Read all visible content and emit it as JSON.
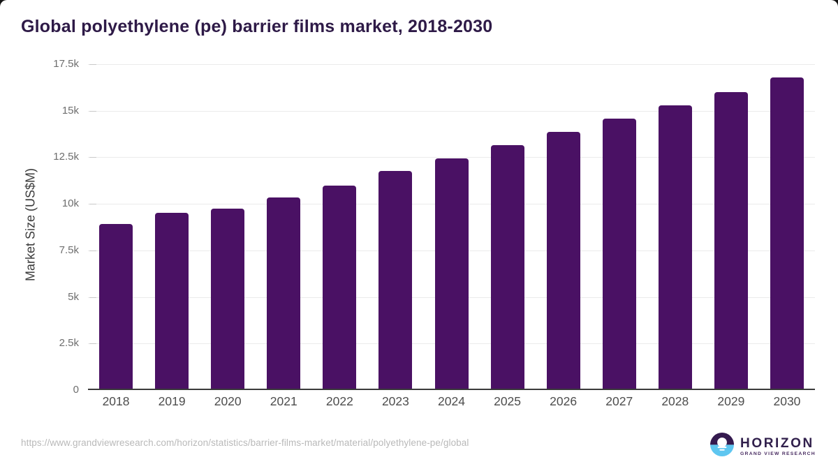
{
  "page": {
    "title": "Global polyethylene (pe) barrier films market, 2018-2030",
    "footer": {
      "source_url": "https://www.grandviewresearch.com/horizon/statistics/barrier-films-market/material/polyethylene-pe/global"
    },
    "logo": {
      "name": "HORIZON",
      "tagline": "GRAND VIEW RESEARCH",
      "icon": "sun-horizon-icon",
      "icon_colors": {
        "top": "#341a4f",
        "bottom": "#5ec6f0",
        "sun": "#ffffff"
      }
    }
  },
  "chart_data": {
    "type": "bar",
    "title": "Global polyethylene (pe) barrier films market, 2018-2030",
    "xlabel": "",
    "ylabel": "Market Size (US$M)",
    "categories": [
      "2018",
      "2019",
      "2020",
      "2021",
      "2022",
      "2023",
      "2024",
      "2025",
      "2026",
      "2027",
      "2028",
      "2029",
      "2030"
    ],
    "values": [
      8930,
      9520,
      9740,
      10330,
      10970,
      11760,
      12460,
      13160,
      13870,
      14580,
      15300,
      16020,
      16780
    ],
    "ylim": [
      0,
      17500
    ],
    "yticks": [
      0,
      2500,
      5000,
      7500,
      10000,
      12500,
      15000,
      17500
    ],
    "ytick_labels": [
      "0",
      "2.5k",
      "5k",
      "7.5k",
      "10k",
      "12.5k",
      "15k",
      "17.5k"
    ],
    "grid": true,
    "legend": false,
    "bar_color": "#4a1164",
    "gridline_color": "#ebebeb",
    "axis_color": "#3a3a3a"
  }
}
